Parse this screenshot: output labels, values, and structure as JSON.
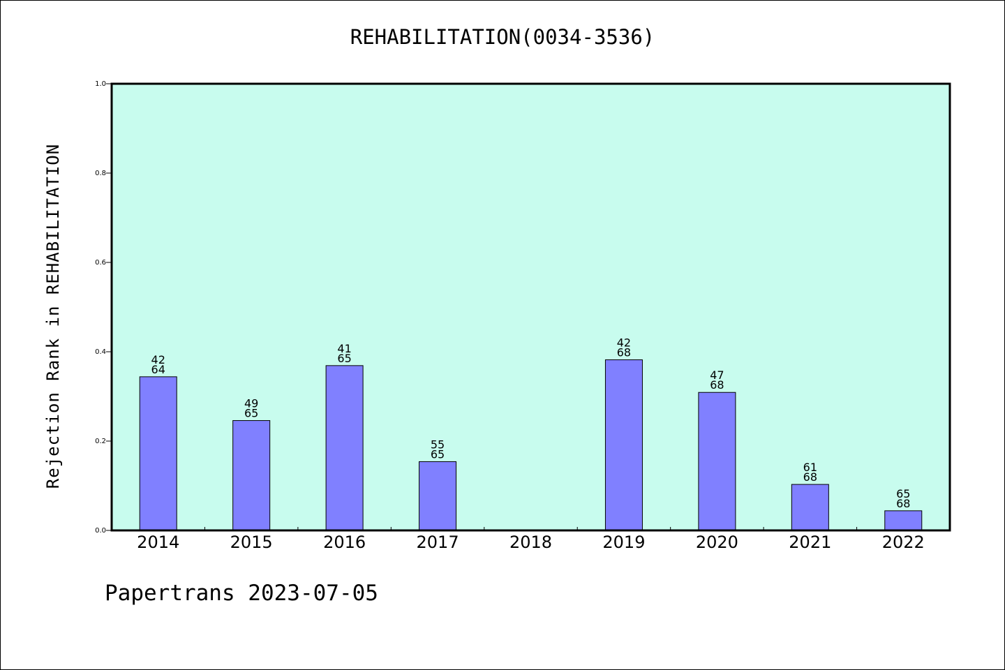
{
  "chart_data": {
    "type": "bar",
    "title": "REHABILITATION(0034-3536)",
    "ylabel": "Rejection Rank in REHABILITATION",
    "xlabel": "",
    "categories": [
      "2014",
      "2015",
      "2016",
      "2017",
      "2018",
      "2019",
      "2020",
      "2021",
      "2022"
    ],
    "values": [
      0.344,
      0.246,
      0.369,
      0.154,
      null,
      0.382,
      0.309,
      0.103,
      0.044
    ],
    "bar_labels": [
      [
        "42",
        "64"
      ],
      [
        "49",
        "65"
      ],
      [
        "41",
        "65"
      ],
      [
        "55",
        "65"
      ],
      null,
      [
        "42",
        "68"
      ],
      [
        "47",
        "68"
      ],
      [
        "61",
        "68"
      ],
      [
        "65",
        "68"
      ]
    ],
    "ylim": [
      0,
      1.0
    ],
    "yticks": [
      "0.0",
      "0.2",
      "0.4",
      "0.6",
      "0.8",
      "1.0"
    ],
    "grid": false,
    "colors": {
      "plot_background": "#c8fcee",
      "bar": "#8080ff",
      "edge": "#000000"
    }
  },
  "footer": "Papertrans 2023-07-05"
}
